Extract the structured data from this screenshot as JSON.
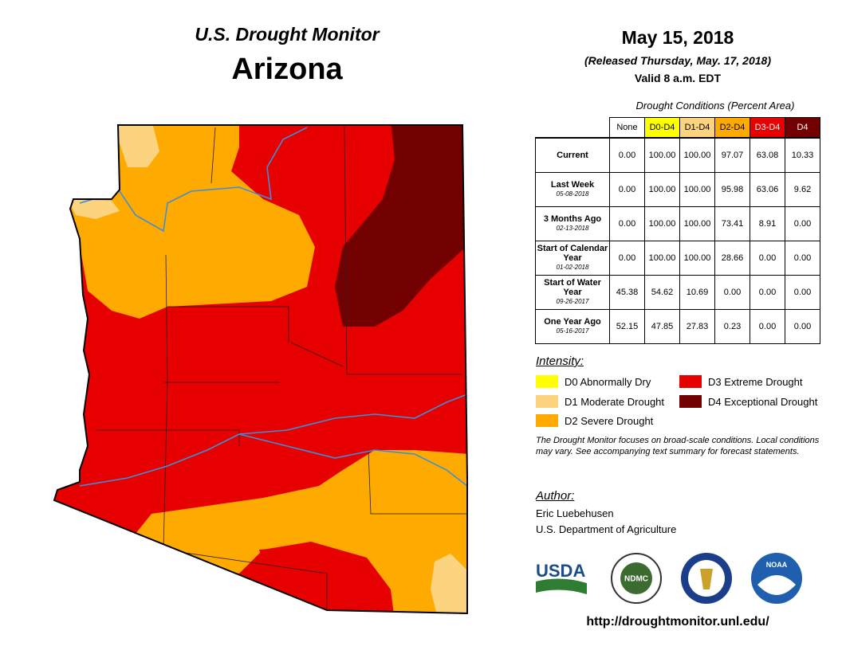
{
  "header": {
    "title": "U.S. Drought Monitor",
    "state": "Arizona"
  },
  "date": {
    "date": "May 15, 2018",
    "released": "(Released Thursday, May. 17, 2018)",
    "valid": "Valid 8 a.m. EDT"
  },
  "table": {
    "caption": "Drought Conditions (Percent Area)",
    "columns": [
      {
        "label": "None",
        "color": "#ffffff",
        "text_color": "#000000"
      },
      {
        "label": "D0-D4",
        "color": "#ffff00",
        "text_color": "#000000"
      },
      {
        "label": "D1-D4",
        "color": "#fcd37f",
        "text_color": "#000000"
      },
      {
        "label": "D2-D4",
        "color": "#ffaa00",
        "text_color": "#000000"
      },
      {
        "label": "D3-D4",
        "color": "#e60000",
        "text_color": "#ffffff"
      },
      {
        "label": "D4",
        "color": "#730000",
        "text_color": "#ffffff"
      }
    ],
    "rows": [
      {
        "label": "Current",
        "values": [
          "0.00",
          "100.00",
          "100.00",
          "97.07",
          "63.08",
          "10.33"
        ]
      },
      {
        "label": "Last Week",
        "date": "05-08-2018",
        "values": [
          "0.00",
          "100.00",
          "100.00",
          "95.98",
          "63.06",
          "9.62"
        ]
      },
      {
        "label": "3 Months Ago",
        "date": "02-13-2018",
        "values": [
          "0.00",
          "100.00",
          "100.00",
          "73.41",
          "8.91",
          "0.00"
        ]
      },
      {
        "label": "Start of Calendar Year",
        "date": "01-02-2018",
        "values": [
          "0.00",
          "100.00",
          "100.00",
          "28.66",
          "0.00",
          "0.00"
        ]
      },
      {
        "label": "Start of Water Year",
        "date": "09-26-2017",
        "values": [
          "45.38",
          "54.62",
          "10.69",
          "0.00",
          "0.00",
          "0.00"
        ]
      },
      {
        "label": "One Year Ago",
        "date": "05-16-2017",
        "values": [
          "52.15",
          "47.85",
          "27.83",
          "0.23",
          "0.00",
          "0.00"
        ]
      }
    ]
  },
  "intensity": {
    "title": "Intensity:",
    "items": [
      {
        "label": "D0 Abnormally Dry",
        "color": "#ffff00"
      },
      {
        "label": "D1 Moderate Drought",
        "color": "#fcd37f"
      },
      {
        "label": "D2 Severe Drought",
        "color": "#ffaa00"
      },
      {
        "label": "D3 Extreme Drought",
        "color": "#e60000"
      },
      {
        "label": "D4 Exceptional Drought",
        "color": "#730000"
      }
    ]
  },
  "note": "The Drought Monitor focuses on broad-scale conditions. Local conditions may vary. See accompanying text summary for forecast statements.",
  "author": {
    "title": "Author:",
    "name": "Eric Luebehusen",
    "organization": "U.S. Department of Agriculture"
  },
  "logos": {
    "usda": "USDA",
    "ndmc": "NDMC",
    "noaa": "NOAA"
  },
  "url": "http://droughtmonitor.unl.edu/"
}
